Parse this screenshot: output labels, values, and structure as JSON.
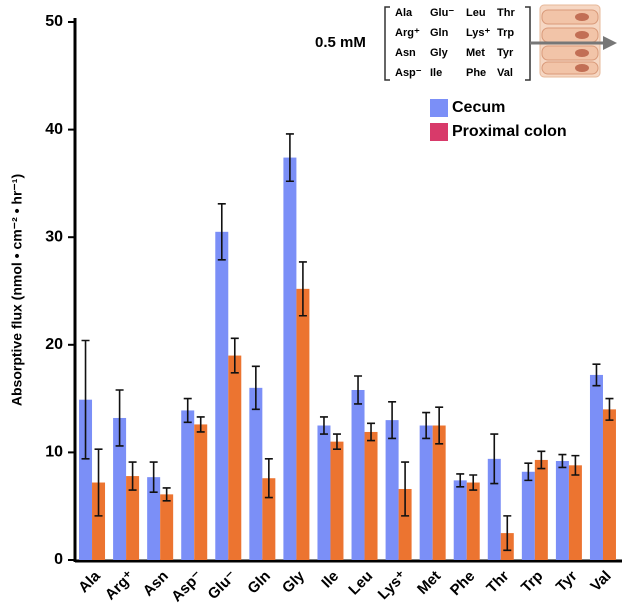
{
  "chart_data": {
    "type": "bar",
    "y_label": "Absorptive flux (nmol • cm⁻² • hr⁻¹)",
    "annotation": "0.5 mM",
    "inset_table": [
      [
        "Ala",
        "Glu⁻",
        "Leu",
        "Thr"
      ],
      [
        "Arg⁺",
        "Gln",
        "Lys⁺",
        "Trp"
      ],
      [
        "Asn",
        "Gly",
        "Met",
        "Tyr"
      ],
      [
        "Asp⁻",
        "Ile",
        "Phe",
        "Val"
      ]
    ],
    "categories": [
      "Ala",
      "Arg⁺",
      "Asn",
      "Asp⁻",
      "Glu⁻",
      "Gln",
      "Gly",
      "Ile",
      "Leu",
      "Lys⁺",
      "Met",
      "Phe",
      "Thr",
      "Trp",
      "Tyr",
      "Val"
    ],
    "series": [
      {
        "name": "Cecum",
        "color": "#7b8ff7",
        "legend_color": "#7b8ff7",
        "values": [
          14.9,
          13.2,
          7.7,
          13.9,
          30.5,
          16.0,
          37.4,
          12.5,
          15.8,
          13.0,
          12.5,
          7.4,
          9.4,
          8.2,
          9.2,
          17.2
        ],
        "errors": [
          5.5,
          2.6,
          1.4,
          1.1,
          2.6,
          2.0,
          2.2,
          0.8,
          1.3,
          1.7,
          1.2,
          0.6,
          2.3,
          0.8,
          0.6,
          1.0
        ]
      },
      {
        "name": "Proximal colon",
        "color": "#ec7430",
        "legend_color": "#d83a6a",
        "values": [
          7.2,
          7.8,
          6.1,
          12.6,
          19.0,
          7.6,
          25.2,
          11.0,
          11.9,
          6.6,
          12.5,
          7.2,
          2.5,
          9.3,
          8.8,
          14.0
        ],
        "errors": [
          3.1,
          1.3,
          0.6,
          0.7,
          1.6,
          1.8,
          2.5,
          0.7,
          0.8,
          2.5,
          1.7,
          0.7,
          1.6,
          0.8,
          0.9,
          1.0
        ]
      }
    ],
    "ylim": [
      0,
      50
    ],
    "yticks": [
      0,
      10,
      20,
      30,
      40,
      50
    ],
    "grid": false
  }
}
